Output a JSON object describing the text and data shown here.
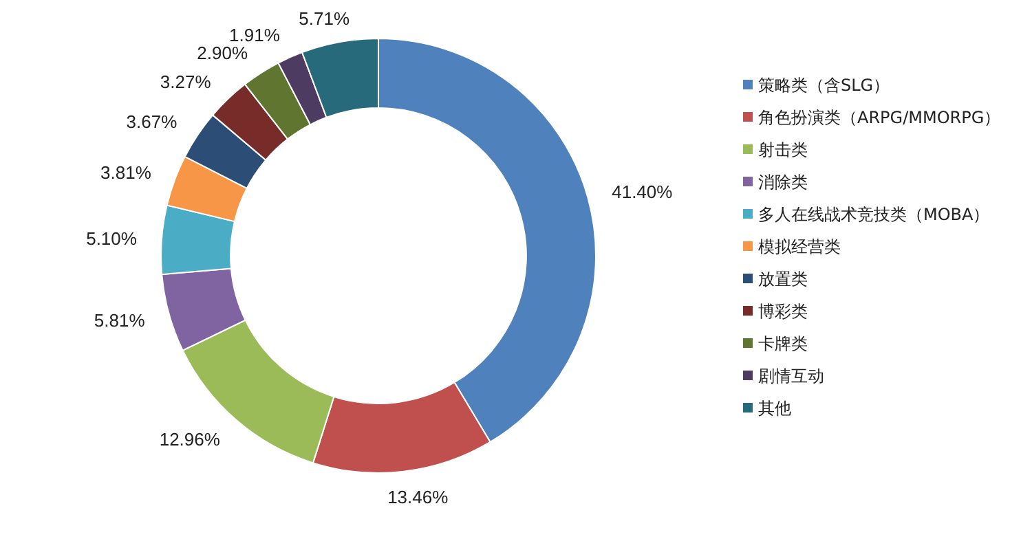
{
  "chart_data": {
    "type": "donut",
    "categories": [
      "策略类（含SLG）",
      "角色扮演类（ARPG/MMORPG）",
      "射击类",
      "消除类",
      "多人在线战术竞技类（MOBA）",
      "模拟经营类",
      "放置类",
      "博彩类",
      "卡牌类",
      "剧情互动",
      "其他"
    ],
    "values": [
      41.4,
      13.46,
      12.96,
      5.81,
      5.1,
      3.81,
      3.67,
      3.27,
      2.9,
      1.91,
      5.71
    ],
    "value_labels": [
      "41.40%",
      "13.46%",
      "12.96%",
      "5.81%",
      "5.10%",
      "3.81%",
      "3.67%",
      "3.27%",
      "2.90%",
      "1.91%",
      "5.71%"
    ],
    "colors": [
      "#4f81bd",
      "#c0504d",
      "#9bbb59",
      "#8064a2",
      "#4bacc6",
      "#f79646",
      "#2c4d75",
      "#772c2a",
      "#5f7530",
      "#4d3b62",
      "#276a7c"
    ],
    "legend": "right"
  }
}
